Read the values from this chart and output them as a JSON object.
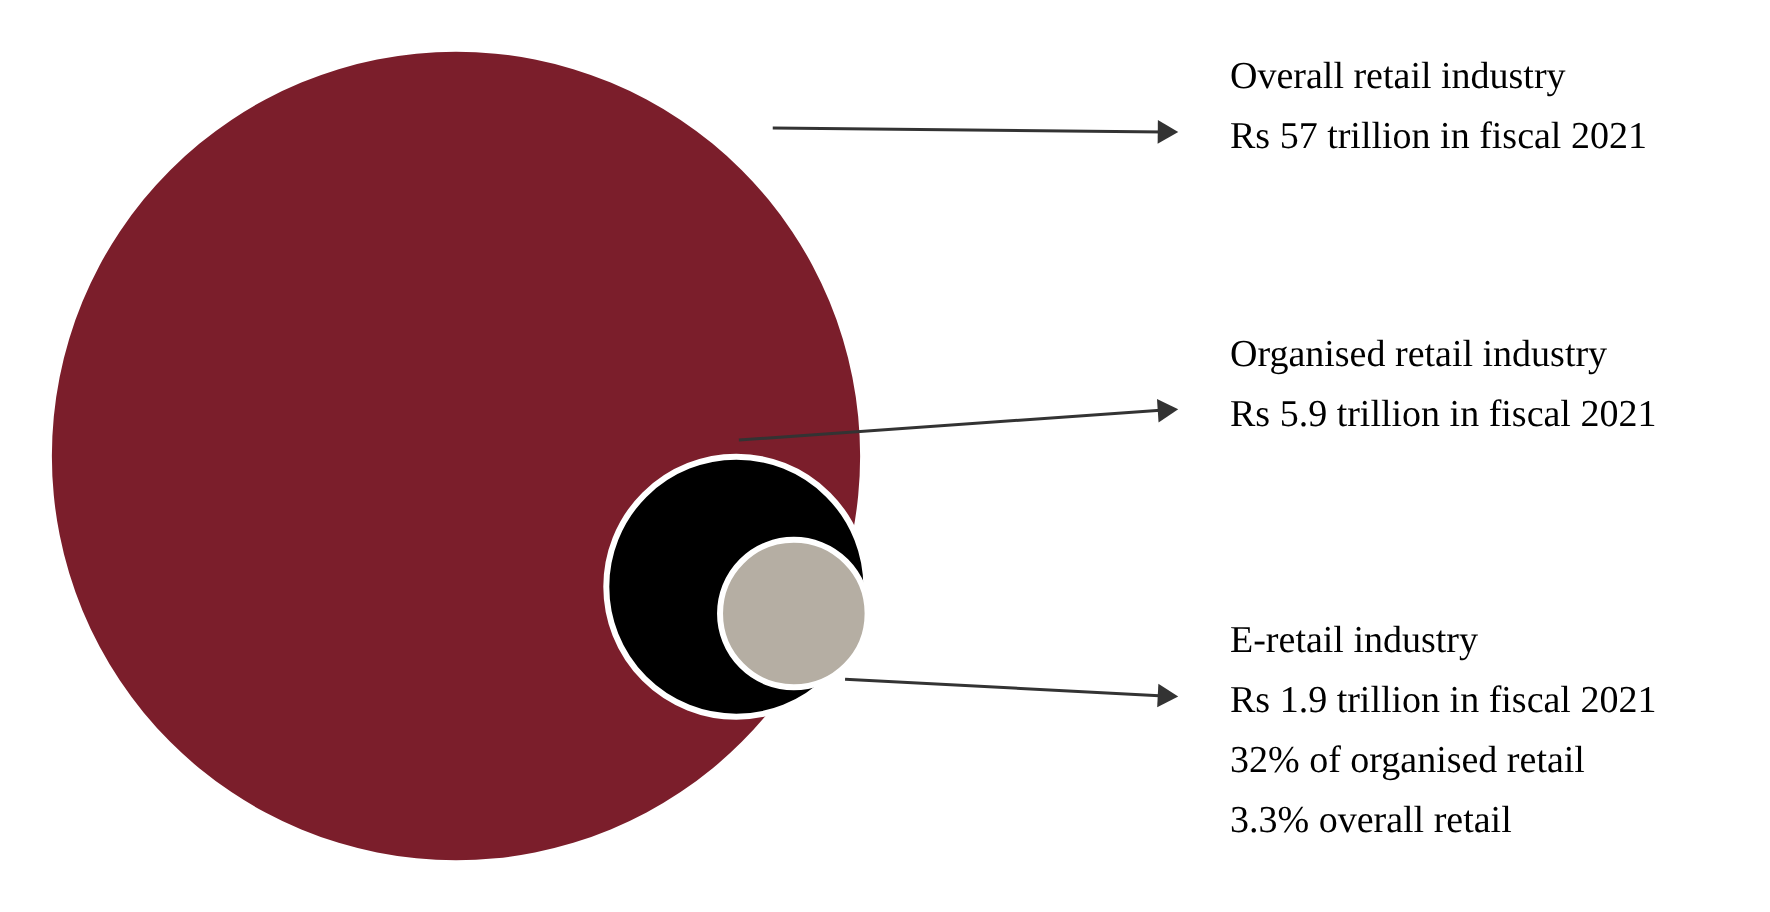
{
  "chart_data": {
    "type": "other",
    "categories": [
      "Overall retail industry",
      "Organised retail industry",
      "E-retail industry"
    ],
    "values": [
      57,
      5.9,
      1.9
    ],
    "value_labels": [
      "Rs 57 trillion in fiscal 2021",
      "Rs 5.9 trillion in fiscal 2021",
      "Rs 1.9 trillion in fiscal 2021"
    ],
    "colors": [
      "#7b1e2b",
      "#000000",
      "#b5aea3"
    ],
    "annotations": [
      "32% of organised retail",
      "3.3% overall retail"
    ]
  }
}
